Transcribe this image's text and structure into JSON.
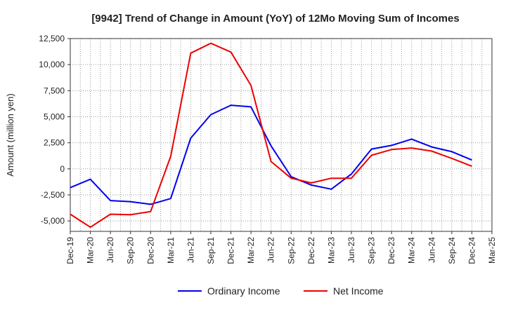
{
  "chart_data": {
    "type": "line",
    "title": "[9942]  Trend of Change in Amount (YoY) of 12Mo Moving Sum of Incomes",
    "xlabel": "",
    "ylabel": "Amount (million yen)",
    "ylim": [
      -6000,
      12500
    ],
    "y_ticks": [
      12500,
      10000,
      7500,
      5000,
      2500,
      0,
      -2500,
      -5000
    ],
    "y_tick_labels": [
      "12,500",
      "10,000",
      "7,500",
      "5,000",
      "2,500",
      "0",
      "-2,500",
      "-5,000"
    ],
    "categories": [
      "Dec-19",
      "Mar-20",
      "Jun-20",
      "Sep-20",
      "Dec-20",
      "Mar-21",
      "Jun-21",
      "Sep-21",
      "Dec-21",
      "Mar-22",
      "Jun-22",
      "Sep-22",
      "Dec-22",
      "Mar-23",
      "Jun-23",
      "Sep-23",
      "Dec-23",
      "Mar-24",
      "Jun-24",
      "Sep-24",
      "Dec-24",
      "Mar-25"
    ],
    "grid": true,
    "legend_position": "bottom",
    "series": [
      {
        "name": "Ordinary Income",
        "color": "#0000ee",
        "values": [
          -1800,
          -1000,
          -3050,
          -3150,
          -3400,
          -2850,
          2950,
          5200,
          6100,
          5950,
          2200,
          -750,
          -1550,
          -1950,
          -500,
          1900,
          2250,
          2850,
          2100,
          1650,
          850,
          null
        ]
      },
      {
        "name": "Net Income",
        "color": "#ee0000",
        "values": [
          -4350,
          -5600,
          -4350,
          -4400,
          -4100,
          1200,
          11100,
          12050,
          11200,
          8000,
          700,
          -900,
          -1350,
          -900,
          -900,
          1300,
          1850,
          2000,
          1700,
          1000,
          250,
          null
        ]
      }
    ]
  }
}
